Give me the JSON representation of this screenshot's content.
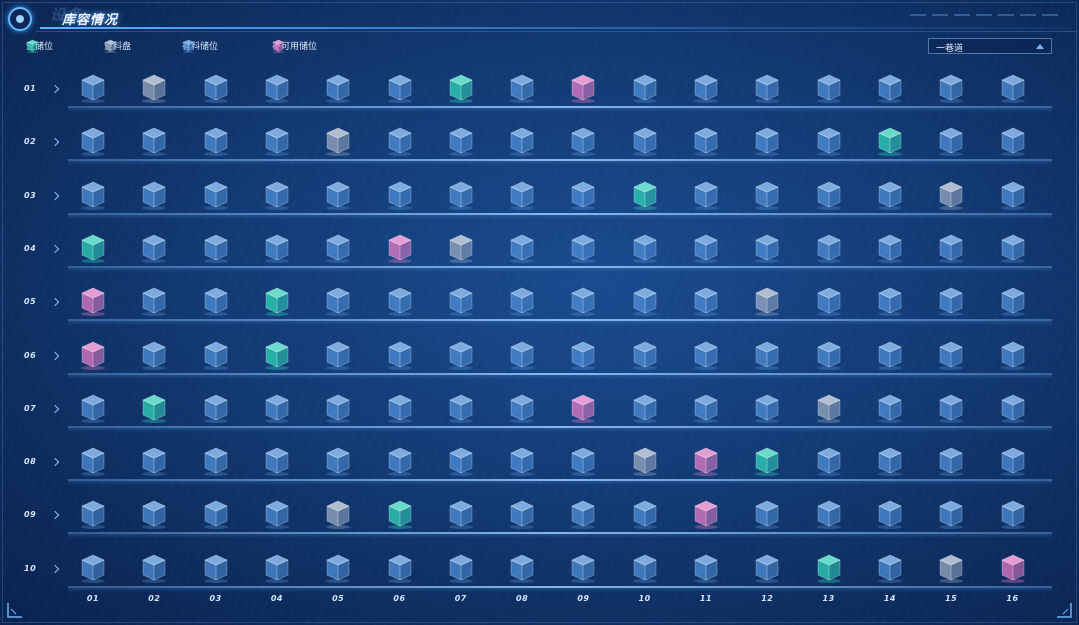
{
  "header": {
    "ghost_text": "设备",
    "title": "库容情况"
  },
  "legend": [
    {
      "status": "empty_slot",
      "label": "空储位",
      "icon": "cube-teal-icon"
    },
    {
      "status": "empty_tray",
      "label": "空料盘",
      "icon": "cube-gray-icon"
    },
    {
      "status": "loaded",
      "label": "有料储位",
      "icon": "cube-blue-icon"
    },
    {
      "status": "unavailable",
      "label": "不可用储位",
      "icon": "cube-pink-icon"
    }
  ],
  "colors": {
    "empty_slot": "#2fd6b9",
    "empty_tray": "#9aaac2",
    "loaded": "#4f8fd8",
    "unavailable": "#e77bc8"
  },
  "aisle_select": {
    "value": "一巷道"
  },
  "row_labels": [
    "01",
    "02",
    "03",
    "04",
    "05",
    "06",
    "07",
    "08",
    "09",
    "10"
  ],
  "column_labels": [
    "01",
    "02",
    "03",
    "04",
    "05",
    "06",
    "07",
    "08",
    "09",
    "10",
    "11",
    "12",
    "13",
    "14",
    "15",
    "16"
  ],
  "grid": [
    "BGBBBBTBPBBBBBBB",
    "BBBBGBBBBBBBBTBB",
    "BBBBBBBBBTBBBBGB",
    "TBBBBPGBBBBBBBBB",
    "PBBTBBBBBBBGBBBB",
    "PBBTBBBBBBBBBBBB",
    "BTBBBBBBPBBBGBBB",
    "BBBBBBBBBGPTBBBB",
    "BBBBGTBBBBPBBBBB",
    "BBBBBBBBBBBBTBGP"
  ],
  "grid_legend": {
    "B": "loaded",
    "G": "empty_tray",
    "T": "empty_slot",
    "P": "unavailable"
  }
}
